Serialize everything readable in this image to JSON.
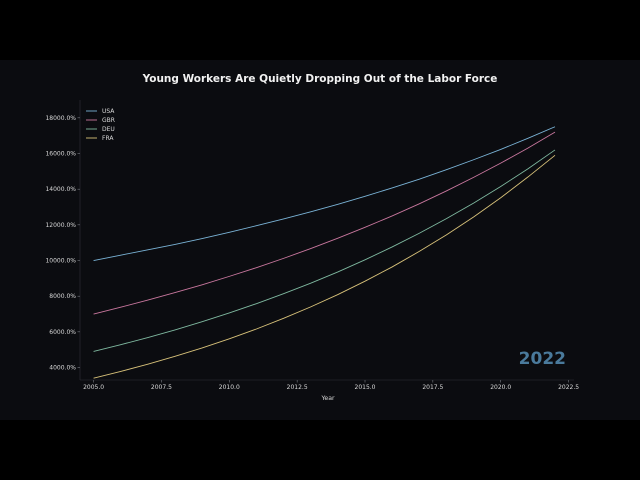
{
  "chart_data": {
    "type": "line",
    "title": "Young Workers Are Quietly Dropping Out of the Labor Force",
    "xlabel": "Year",
    "ylabel": "",
    "xlim": [
      2004.5,
      2022.7
    ],
    "ylim": [
      3300,
      19000
    ],
    "x_ticks": [
      2005.0,
      2007.5,
      2010.0,
      2012.5,
      2015.0,
      2017.5,
      2020.0,
      2022.5
    ],
    "x_tick_labels": [
      "2005.0",
      "2007.5",
      "2010.0",
      "2012.5",
      "2015.0",
      "2017.5",
      "2020.0",
      "2022.5"
    ],
    "y_ticks": [
      4000,
      6000,
      8000,
      10000,
      12000,
      14000,
      16000,
      18000
    ],
    "y_tick_labels": [
      "4000.0%",
      "6000.0%",
      "8000.0%",
      "10000.0%",
      "12000.0%",
      "14000.0%",
      "16000.0%",
      "18000.0%"
    ],
    "legend_position": "top-left",
    "grid": false,
    "annotation": "2022",
    "x": [
      2005,
      2006,
      2007,
      2008,
      2009,
      2010,
      2011,
      2012,
      2013,
      2014,
      2015,
      2016,
      2017,
      2018,
      2019,
      2020,
      2021,
      2022
    ],
    "series": [
      {
        "name": "USA",
        "color": "#7ab3d6",
        "values": [
          10000,
          10300,
          10600,
          10900,
          11230,
          11580,
          11950,
          12330,
          12730,
          13150,
          13600,
          14070,
          14560,
          15090,
          15650,
          16230,
          16850,
          17500
        ]
      },
      {
        "name": "GBR",
        "color": "#c9779e",
        "values": [
          7000,
          7380,
          7780,
          8200,
          8640,
          9110,
          9600,
          10120,
          10670,
          11250,
          11860,
          12500,
          13180,
          13900,
          14660,
          15460,
          16300,
          17200
        ]
      },
      {
        "name": "DEU",
        "color": "#7fb9a0",
        "values": [
          4900,
          5280,
          5680,
          6110,
          6570,
          7060,
          7580,
          8140,
          8730,
          9360,
          10040,
          10760,
          11530,
          12350,
          13220,
          14150,
          15140,
          16200
        ]
      },
      {
        "name": "FRA",
        "color": "#d8c27a",
        "values": [
          3400,
          3780,
          4190,
          4630,
          5100,
          5610,
          6160,
          6760,
          7400,
          8090,
          8840,
          9640,
          10510,
          11440,
          12440,
          13520,
          14680,
          15900
        ]
      }
    ]
  }
}
